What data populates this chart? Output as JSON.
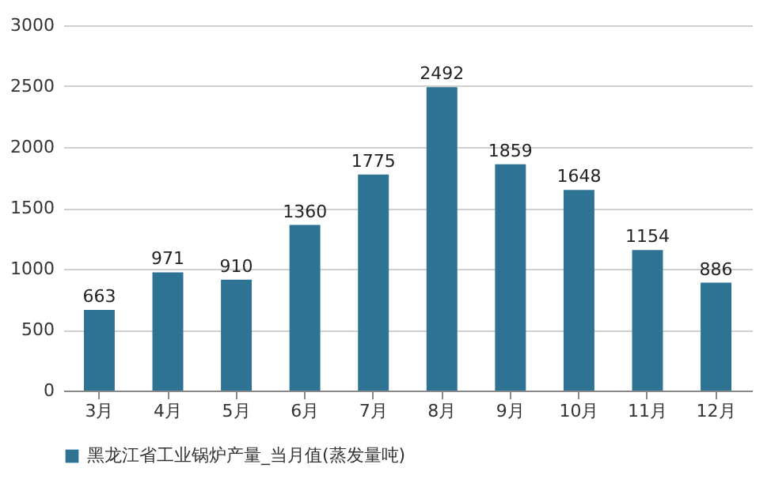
{
  "chart_data": {
    "type": "bar",
    "categories": [
      "3月",
      "4月",
      "5月",
      "6月",
      "7月",
      "8月",
      "9月",
      "10月",
      "11月",
      "12月"
    ],
    "series": [
      {
        "name": "黑龙江省工业锅炉产量_当月值(蒸发量吨)",
        "color": "#2e7394",
        "values": [
          663,
          971,
          910,
          1360,
          1775,
          2492,
          1859,
          1648,
          1154,
          886
        ]
      }
    ],
    "ylim": [
      0,
      3000
    ],
    "yticks": [
      0,
      500,
      1000,
      1500,
      2000,
      2500,
      3000
    ],
    "grid": "y",
    "legend": "bottom",
    "data_labels": true
  }
}
